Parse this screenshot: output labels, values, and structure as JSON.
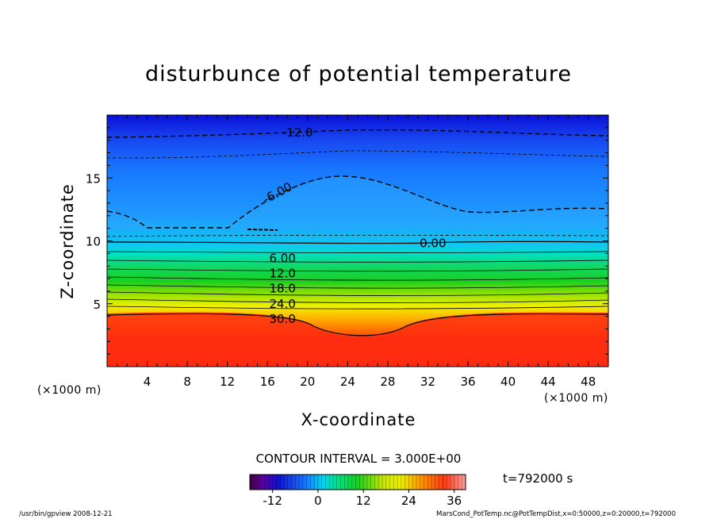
{
  "chart_data": {
    "type": "heatmap",
    "title": "disturbunce of potential temperature",
    "xlabel": "X-coordinate",
    "ylabel": "Z-coordinate",
    "x_unit": "(×1000 m)",
    "y_unit": "(×1000 m)",
    "xlim": [
      0,
      50
    ],
    "ylim": [
      0,
      20
    ],
    "x_ticks": [
      "4",
      "8",
      "12",
      "16",
      "20",
      "24",
      "28",
      "32",
      "36",
      "40",
      "44",
      "48"
    ],
    "y_ticks": [
      "5",
      "10",
      "15"
    ],
    "contour_interval_label": "CONTOUR INTERVAL = 3.000E+00",
    "contour_labels": [
      {
        "text": "-12.0",
        "x": 19,
        "z": 18.6
      },
      {
        "text": "-6.00",
        "x": 17,
        "z": 13.8
      },
      {
        "text": "0.00",
        "x": 32.5,
        "z": 9.8
      },
      {
        "text": "6.00",
        "x": 17.5,
        "z": 8.6
      },
      {
        "text": "12.0",
        "x": 17.5,
        "z": 7.4
      },
      {
        "text": "18.0",
        "x": 17.5,
        "z": 6.2
      },
      {
        "text": "24.0",
        "x": 17.5,
        "z": 5.0
      },
      {
        "text": "30.0",
        "x": 17.5,
        "z": 3.8
      }
    ],
    "colorbar": {
      "min": -18,
      "max": 39,
      "ticks": [
        "-12",
        "0",
        "12",
        "24",
        "36"
      ],
      "tick_values": [
        -12,
        0,
        12,
        24,
        36
      ]
    },
    "time_label": "t=792000 s",
    "colors": {
      "deep_blue": "#0a10d8",
      "sky_blue": "#1e90ff",
      "cyan": "#00e0e8",
      "green": "#10d020",
      "yellow": "#f0f000",
      "orange": "#ff8000",
      "red": "#ff2c10"
    }
  },
  "footer": {
    "left": "/usr/bin/gpview   2008-12-21",
    "right": "MarsCond_PotTemp.nc@PotTempDist,x=0:50000,z=0:20000,t=792000"
  }
}
